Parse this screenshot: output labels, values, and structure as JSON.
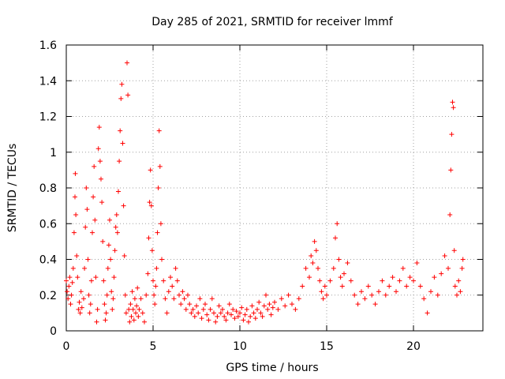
{
  "chart_data": {
    "type": "scatter",
    "title": "Day 285 of 2021, SRMTID for receiver lmmf",
    "xlabel": "GPS time / hours",
    "ylabel": "SRMTID / TECUs",
    "xlim": [
      0,
      24
    ],
    "ylim": [
      0,
      1.6
    ],
    "xticks": [
      0,
      5,
      10,
      15,
      20
    ],
    "xtick_labels": [
      "0",
      "5",
      "10",
      "15",
      "20"
    ],
    "yticks": [
      0,
      0.2,
      0.4,
      0.6,
      0.8,
      1,
      1.2,
      1.4,
      1.6
    ],
    "ytick_labels": [
      "0",
      "0.2",
      "0.4",
      "0.6",
      "0.8",
      "1",
      "1.2",
      "1.4",
      "1.6"
    ],
    "grid": true,
    "marker": "+",
    "color": "#ff0000",
    "series": [
      {
        "name": "SRMTID",
        "points": [
          [
            0.0,
            0.28
          ],
          [
            0.05,
            0.22
          ],
          [
            0.1,
            0.18
          ],
          [
            0.15,
            0.25
          ],
          [
            0.2,
            0.3
          ],
          [
            0.25,
            0.15
          ],
          [
            0.3,
            0.2
          ],
          [
            0.35,
            0.27
          ],
          [
            0.4,
            0.35
          ],
          [
            0.45,
            0.55
          ],
          [
            0.5,
            0.75
          ],
          [
            0.52,
            0.88
          ],
          [
            0.55,
            0.65
          ],
          [
            0.6,
            0.42
          ],
          [
            0.65,
            0.3
          ],
          [
            0.7,
            0.12
          ],
          [
            0.75,
            0.16
          ],
          [
            0.8,
            0.1
          ],
          [
            0.85,
            0.22
          ],
          [
            0.9,
            0.13
          ],
          [
            1.0,
            0.18
          ],
          [
            1.05,
            0.35
          ],
          [
            1.1,
            0.58
          ],
          [
            1.15,
            0.8
          ],
          [
            1.2,
            0.68
          ],
          [
            1.25,
            0.4
          ],
          [
            1.3,
            0.2
          ],
          [
            1.35,
            0.1
          ],
          [
            1.4,
            0.15
          ],
          [
            1.45,
            0.28
          ],
          [
            1.5,
            0.55
          ],
          [
            1.55,
            0.75
          ],
          [
            1.6,
            0.92
          ],
          [
            1.65,
            0.62
          ],
          [
            1.7,
            0.3
          ],
          [
            1.75,
            0.05
          ],
          [
            1.8,
            0.12
          ],
          [
            1.85,
            1.02
          ],
          [
            1.9,
            1.14
          ],
          [
            1.95,
            0.95
          ],
          [
            2.0,
            0.85
          ],
          [
            2.05,
            0.72
          ],
          [
            2.1,
            0.5
          ],
          [
            2.15,
            0.28
          ],
          [
            2.2,
            0.15
          ],
          [
            2.25,
            0.06
          ],
          [
            2.3,
            0.1
          ],
          [
            2.35,
            0.2
          ],
          [
            2.4,
            0.35
          ],
          [
            2.45,
            0.48
          ],
          [
            2.5,
            0.62
          ],
          [
            2.55,
            0.4
          ],
          [
            2.6,
            0.22
          ],
          [
            2.65,
            0.12
          ],
          [
            2.7,
            0.18
          ],
          [
            2.75,
            0.3
          ],
          [
            2.8,
            0.45
          ],
          [
            2.85,
            0.58
          ],
          [
            2.9,
            0.65
          ],
          [
            2.95,
            0.55
          ],
          [
            3.0,
            0.78
          ],
          [
            3.05,
            0.95
          ],
          [
            3.1,
            1.12
          ],
          [
            3.15,
            1.3
          ],
          [
            3.2,
            1.38
          ],
          [
            3.25,
            1.05
          ],
          [
            3.3,
            0.7
          ],
          [
            3.35,
            0.42
          ],
          [
            3.4,
            0.2
          ],
          [
            3.45,
            0.1
          ],
          [
            3.5,
            1.5
          ],
          [
            3.55,
            1.32
          ],
          [
            3.6,
            0.12
          ],
          [
            3.65,
            0.05
          ],
          [
            3.7,
            0.15
          ],
          [
            3.75,
            0.08
          ],
          [
            3.8,
            0.22
          ],
          [
            3.85,
            0.12
          ],
          [
            3.9,
            0.06
          ],
          [
            3.95,
            0.18
          ],
          [
            4.0,
            0.1
          ],
          [
            4.05,
            0.14
          ],
          [
            4.1,
            0.24
          ],
          [
            4.15,
            0.08
          ],
          [
            4.2,
            0.12
          ],
          [
            4.3,
            0.18
          ],
          [
            4.4,
            0.1
          ],
          [
            4.5,
            0.05
          ],
          [
            4.6,
            0.2
          ],
          [
            4.7,
            0.32
          ],
          [
            4.75,
            0.52
          ],
          [
            4.8,
            0.72
          ],
          [
            4.85,
            0.9
          ],
          [
            4.9,
            0.7
          ],
          [
            4.95,
            0.45
          ],
          [
            5.0,
            0.28
          ],
          [
            5.05,
            0.2
          ],
          [
            5.1,
            0.15
          ],
          [
            5.15,
            0.25
          ],
          [
            5.2,
            0.35
          ],
          [
            5.25,
            0.55
          ],
          [
            5.3,
            0.8
          ],
          [
            5.35,
            1.12
          ],
          [
            5.4,
            0.92
          ],
          [
            5.45,
            0.6
          ],
          [
            5.5,
            0.4
          ],
          [
            5.6,
            0.28
          ],
          [
            5.7,
            0.18
          ],
          [
            5.8,
            0.1
          ],
          [
            5.9,
            0.22
          ],
          [
            6.0,
            0.3
          ],
          [
            6.1,
            0.25
          ],
          [
            6.2,
            0.18
          ],
          [
            6.3,
            0.35
          ],
          [
            6.4,
            0.28
          ],
          [
            6.5,
            0.2
          ],
          [
            6.6,
            0.15
          ],
          [
            6.7,
            0.22
          ],
          [
            6.8,
            0.18
          ],
          [
            6.9,
            0.12
          ],
          [
            7.0,
            0.2
          ],
          [
            7.1,
            0.15
          ],
          [
            7.2,
            0.1
          ],
          [
            7.3,
            0.12
          ],
          [
            7.4,
            0.08
          ],
          [
            7.5,
            0.14
          ],
          [
            7.6,
            0.1
          ],
          [
            7.7,
            0.18
          ],
          [
            7.8,
            0.07
          ],
          [
            7.9,
            0.12
          ],
          [
            8.0,
            0.15
          ],
          [
            8.1,
            0.09
          ],
          [
            8.2,
            0.06
          ],
          [
            8.3,
            0.12
          ],
          [
            8.4,
            0.18
          ],
          [
            8.5,
            0.1
          ],
          [
            8.6,
            0.05
          ],
          [
            8.7,
            0.08
          ],
          [
            8.8,
            0.14
          ],
          [
            8.9,
            0.1
          ],
          [
            9.0,
            0.12
          ],
          [
            9.1,
            0.08
          ],
          [
            9.2,
            0.06
          ],
          [
            9.3,
            0.1
          ],
          [
            9.4,
            0.15
          ],
          [
            9.5,
            0.09
          ],
          [
            9.6,
            0.12
          ],
          [
            9.7,
            0.07
          ],
          [
            9.8,
            0.11
          ],
          [
            9.9,
            0.08
          ],
          [
            10.0,
            0.1
          ],
          [
            10.1,
            0.13
          ],
          [
            10.2,
            0.06
          ],
          [
            10.3,
            0.09
          ],
          [
            10.4,
            0.12
          ],
          [
            10.5,
            0.05
          ],
          [
            10.6,
            0.08
          ],
          [
            10.7,
            0.14
          ],
          [
            10.8,
            0.1
          ],
          [
            10.9,
            0.07
          ],
          [
            11.0,
            0.12
          ],
          [
            11.1,
            0.16
          ],
          [
            11.2,
            0.1
          ],
          [
            11.3,
            0.08
          ],
          [
            11.4,
            0.14
          ],
          [
            11.5,
            0.2
          ],
          [
            11.6,
            0.12
          ],
          [
            11.7,
            0.15
          ],
          [
            11.8,
            0.09
          ],
          [
            11.9,
            0.13
          ],
          [
            12.0,
            0.16
          ],
          [
            12.2,
            0.12
          ],
          [
            12.4,
            0.18
          ],
          [
            12.6,
            0.14
          ],
          [
            12.8,
            0.2
          ],
          [
            13.0,
            0.15
          ],
          [
            13.2,
            0.12
          ],
          [
            13.4,
            0.18
          ],
          [
            13.6,
            0.25
          ],
          [
            13.8,
            0.35
          ],
          [
            14.0,
            0.3
          ],
          [
            14.1,
            0.42
          ],
          [
            14.2,
            0.38
          ],
          [
            14.3,
            0.5
          ],
          [
            14.4,
            0.45
          ],
          [
            14.5,
            0.35
          ],
          [
            14.6,
            0.28
          ],
          [
            14.7,
            0.22
          ],
          [
            14.8,
            0.18
          ],
          [
            14.9,
            0.25
          ],
          [
            15.0,
            0.2
          ],
          [
            15.2,
            0.28
          ],
          [
            15.4,
            0.35
          ],
          [
            15.5,
            0.52
          ],
          [
            15.6,
            0.6
          ],
          [
            15.7,
            0.4
          ],
          [
            15.8,
            0.3
          ],
          [
            15.9,
            0.25
          ],
          [
            16.0,
            0.32
          ],
          [
            16.2,
            0.38
          ],
          [
            16.4,
            0.28
          ],
          [
            16.6,
            0.2
          ],
          [
            16.8,
            0.15
          ],
          [
            17.0,
            0.22
          ],
          [
            17.2,
            0.18
          ],
          [
            17.4,
            0.25
          ],
          [
            17.6,
            0.2
          ],
          [
            17.8,
            0.15
          ],
          [
            18.0,
            0.22
          ],
          [
            18.2,
            0.28
          ],
          [
            18.4,
            0.2
          ],
          [
            18.6,
            0.25
          ],
          [
            18.8,
            0.3
          ],
          [
            19.0,
            0.22
          ],
          [
            19.2,
            0.28
          ],
          [
            19.4,
            0.35
          ],
          [
            19.6,
            0.25
          ],
          [
            19.8,
            0.3
          ],
          [
            20.0,
            0.28
          ],
          [
            20.2,
            0.38
          ],
          [
            20.4,
            0.25
          ],
          [
            20.6,
            0.18
          ],
          [
            20.8,
            0.1
          ],
          [
            21.0,
            0.22
          ],
          [
            21.2,
            0.3
          ],
          [
            21.4,
            0.2
          ],
          [
            21.6,
            0.32
          ],
          [
            21.8,
            0.42
          ],
          [
            22.0,
            0.35
          ],
          [
            22.1,
            0.65
          ],
          [
            22.15,
            0.9
          ],
          [
            22.2,
            1.1
          ],
          [
            22.25,
            1.28
          ],
          [
            22.3,
            1.25
          ],
          [
            22.35,
            0.45
          ],
          [
            22.4,
            0.25
          ],
          [
            22.5,
            0.2
          ],
          [
            22.6,
            0.28
          ],
          [
            22.7,
            0.22
          ],
          [
            22.8,
            0.35
          ],
          [
            22.85,
            0.4
          ]
        ]
      }
    ]
  }
}
